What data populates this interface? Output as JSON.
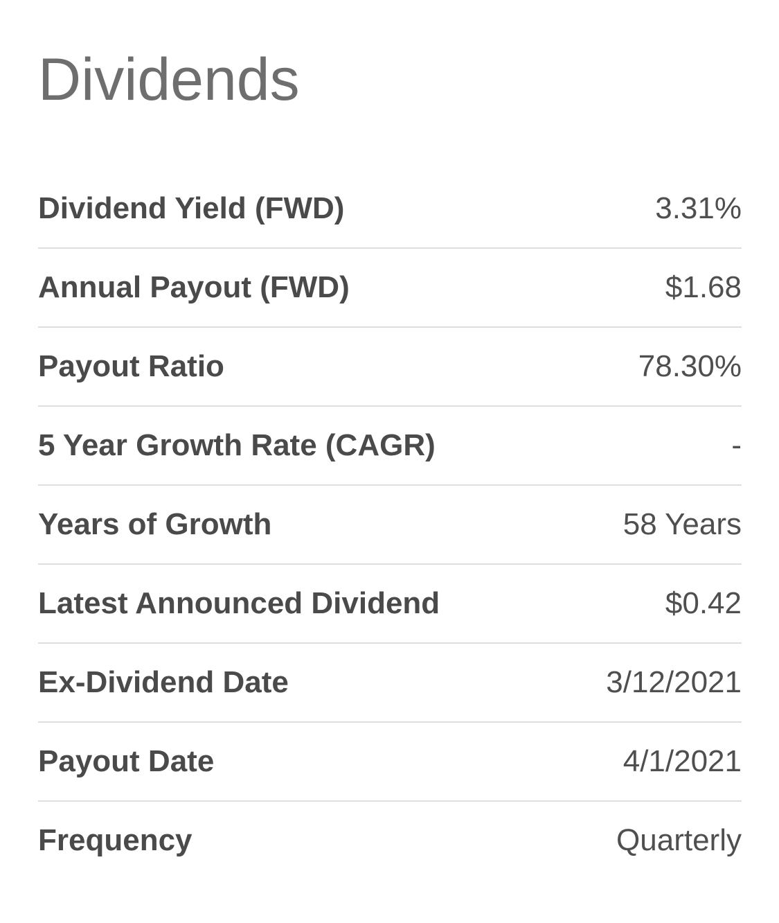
{
  "header": {
    "title": "Dividends"
  },
  "rows": [
    {
      "label": "Dividend Yield (FWD)",
      "value": "3.31%"
    },
    {
      "label": "Annual Payout (FWD)",
      "value": "$1.68"
    },
    {
      "label": "Payout Ratio",
      "value": "78.30%"
    },
    {
      "label": "5 Year Growth Rate (CAGR)",
      "value": "-"
    },
    {
      "label": "Years of Growth",
      "value": "58 Years"
    },
    {
      "label": "Latest Announced Dividend",
      "value": "$0.42"
    },
    {
      "label": "Ex-Dividend Date",
      "value": "3/12/2021"
    },
    {
      "label": "Payout Date",
      "value": "4/1/2021"
    },
    {
      "label": "Frequency",
      "value": "Quarterly"
    }
  ]
}
